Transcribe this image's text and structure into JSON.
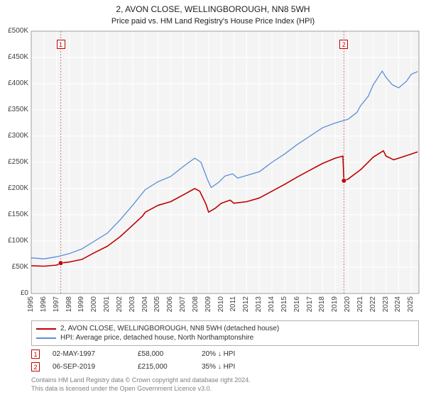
{
  "title": "2, AVON CLOSE, WELLINGBOROUGH, NN8 5WH",
  "subtitle": "Price paid vs. HM Land Registry's House Price Index (HPI)",
  "chart": {
    "type": "line",
    "background_color": "#ffffff",
    "plot_bg_color": "#f4f4f4",
    "grid_color": "#ffffff",
    "axis_color": "#606060",
    "label_color": "#404040",
    "label_fontsize": 10,
    "xlim": [
      1995,
      2025.6
    ],
    "ylim": [
      0,
      500000
    ],
    "ytick_step": 50000,
    "yticks": [
      0,
      50000,
      100000,
      150000,
      200000,
      250000,
      300000,
      350000,
      400000,
      450000,
      500000
    ],
    "ytick_labels": [
      "£0",
      "£50K",
      "£100K",
      "£150K",
      "£200K",
      "£250K",
      "£300K",
      "£350K",
      "£400K",
      "£450K",
      "£500K"
    ],
    "xticks": [
      1995,
      1996,
      1997,
      1998,
      1999,
      2000,
      2001,
      2002,
      2003,
      2004,
      2005,
      2006,
      2007,
      2008,
      2009,
      2010,
      2011,
      2012,
      2013,
      2014,
      2015,
      2016,
      2017,
      2018,
      2019,
      2020,
      2021,
      2022,
      2023,
      2024,
      2025
    ],
    "event_line_color": "#d08080",
    "event_line_dash": "2,2",
    "series": [
      {
        "name": "price_paid",
        "label": "2, AVON CLOSE, WELLINGBOROUGH, NN8 5WH (detached house)",
        "color": "#c00000",
        "line_width": 1.6,
        "data": [
          [
            1995.0,
            53000
          ],
          [
            1996.0,
            52000
          ],
          [
            1997.0,
            54000
          ],
          [
            1997.33,
            58000
          ],
          [
            1998.0,
            60000
          ],
          [
            1999.0,
            65000
          ],
          [
            2000.0,
            78000
          ],
          [
            2001.0,
            90000
          ],
          [
            2002.0,
            108000
          ],
          [
            2003.0,
            130000
          ],
          [
            2003.8,
            148000
          ],
          [
            2004.0,
            155000
          ],
          [
            2005.0,
            168000
          ],
          [
            2006.0,
            175000
          ],
          [
            2007.0,
            188000
          ],
          [
            2007.9,
            200000
          ],
          [
            2008.3,
            195000
          ],
          [
            2008.8,
            170000
          ],
          [
            2009.0,
            155000
          ],
          [
            2009.5,
            162000
          ],
          [
            2010.0,
            172000
          ],
          [
            2010.7,
            178000
          ],
          [
            2011.0,
            172000
          ],
          [
            2012.0,
            175000
          ],
          [
            2013.0,
            182000
          ],
          [
            2014.0,
            195000
          ],
          [
            2015.0,
            208000
          ],
          [
            2016.0,
            222000
          ],
          [
            2017.0,
            235000
          ],
          [
            2018.0,
            248000
          ],
          [
            2019.0,
            258000
          ],
          [
            2019.6,
            262000
          ],
          [
            2019.68,
            215000
          ],
          [
            2020.0,
            218000
          ],
          [
            2021.0,
            236000
          ],
          [
            2022.0,
            260000
          ],
          [
            2022.8,
            272000
          ],
          [
            2023.0,
            262000
          ],
          [
            2023.6,
            255000
          ],
          [
            2024.0,
            258000
          ],
          [
            2025.0,
            266000
          ],
          [
            2025.5,
            270000
          ]
        ]
      },
      {
        "name": "hpi",
        "label": "HPI: Average price, detached house, North Northamptonshire",
        "color": "#5b8fd6",
        "line_width": 1.3,
        "data": [
          [
            1995.0,
            68000
          ],
          [
            1996.0,
            66000
          ],
          [
            1997.0,
            70000
          ],
          [
            1998.0,
            76000
          ],
          [
            1999.0,
            85000
          ],
          [
            2000.0,
            100000
          ],
          [
            2001.0,
            115000
          ],
          [
            2002.0,
            140000
          ],
          [
            2003.0,
            168000
          ],
          [
            2004.0,
            198000
          ],
          [
            2005.0,
            213000
          ],
          [
            2006.0,
            223000
          ],
          [
            2007.0,
            242000
          ],
          [
            2007.9,
            258000
          ],
          [
            2008.4,
            250000
          ],
          [
            2008.9,
            218000
          ],
          [
            2009.2,
            202000
          ],
          [
            2009.8,
            212000
          ],
          [
            2010.3,
            224000
          ],
          [
            2010.9,
            228000
          ],
          [
            2011.3,
            220000
          ],
          [
            2012.0,
            225000
          ],
          [
            2013.0,
            232000
          ],
          [
            2014.0,
            250000
          ],
          [
            2015.0,
            266000
          ],
          [
            2016.0,
            284000
          ],
          [
            2017.0,
            300000
          ],
          [
            2018.0,
            316000
          ],
          [
            2019.0,
            325000
          ],
          [
            2020.0,
            332000
          ],
          [
            2020.7,
            345000
          ],
          [
            2021.0,
            358000
          ],
          [
            2021.6,
            376000
          ],
          [
            2022.0,
            398000
          ],
          [
            2022.7,
            424000
          ],
          [
            2023.0,
            412000
          ],
          [
            2023.5,
            398000
          ],
          [
            2024.0,
            392000
          ],
          [
            2024.6,
            404000
          ],
          [
            2025.0,
            418000
          ],
          [
            2025.5,
            423000
          ]
        ]
      }
    ],
    "sale_markers": [
      {
        "x": 1997.33,
        "y": 58000,
        "color": "#c00000"
      },
      {
        "x": 2019.68,
        "y": 215000,
        "color": "#c00000"
      }
    ],
    "event_lines": [
      {
        "x": 1997.33,
        "num": "1"
      },
      {
        "x": 2019.68,
        "num": "2"
      }
    ]
  },
  "legend": {
    "border_color": "#b0b0b0",
    "items": [
      {
        "color": "#c00000",
        "label": "2, AVON CLOSE, WELLINGBOROUGH, NN8 5WH (detached house)"
      },
      {
        "color": "#5b8fd6",
        "label": "HPI: Average price, detached house, North Northamptonshire"
      }
    ]
  },
  "events": [
    {
      "num": "1",
      "date": "02-MAY-1997",
      "price": "£58,000",
      "delta": "20% ↓ HPI"
    },
    {
      "num": "2",
      "date": "06-SEP-2019",
      "price": "£215,000",
      "delta": "35% ↓ HPI"
    }
  ],
  "footer_line1": "Contains HM Land Registry data © Crown copyright and database right 2024.",
  "footer_line2": "This data is licensed under the Open Government Licence v3.0."
}
